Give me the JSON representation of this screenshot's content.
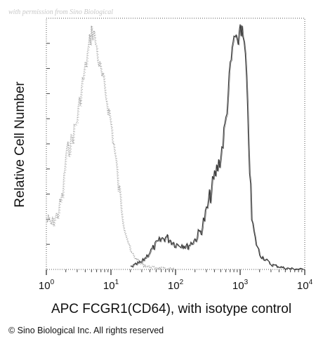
{
  "watermark": "with permission from Sino Biological",
  "copyright": "© Sino Biological Inc. All rights reserved",
  "chart_data": {
    "type": "line",
    "xlabel": "APC FCGR1(CD64), with isotype control",
    "ylabel": "Relative Cell Number",
    "x_scale": "log",
    "xlim": [
      1,
      10000
    ],
    "ylim": [
      0,
      100
    ],
    "x_ticks": [
      {
        "base": "10",
        "exp": "0"
      },
      {
        "base": "10",
        "exp": "1"
      },
      {
        "base": "10",
        "exp": "2"
      },
      {
        "base": "10",
        "exp": "3"
      },
      {
        "base": "10",
        "exp": "4"
      }
    ],
    "grid": false,
    "legend": "none",
    "series": [
      {
        "style": "dotted",
        "color": "#9a9a9a",
        "x": [
          1.0,
          1.2,
          1.5,
          1.8,
          2.0,
          2.5,
          3.0,
          3.5,
          4.0,
          4.5,
          5.0,
          5.5,
          6.0,
          6.5,
          7.0,
          8.0,
          9.0,
          10.0,
          11.0,
          12.0,
          13.0,
          14.0,
          16.0,
          18.0,
          20.0,
          25.0,
          30.0,
          40.0,
          60.0,
          100.0
        ],
        "y": [
          20,
          18,
          22,
          30,
          45,
          52,
          60,
          72,
          80,
          88,
          95,
          93,
          88,
          82,
          78,
          72,
          65,
          58,
          50,
          42,
          33,
          28,
          18,
          12,
          7,
          4,
          2,
          1,
          0.5,
          0
        ]
      },
      {
        "style": "solid",
        "color": "#333333",
        "x": [
          20,
          30,
          40,
          50,
          60,
          70,
          80,
          100,
          130,
          150,
          200,
          250,
          300,
          400,
          500,
          600,
          700,
          800,
          900,
          1000,
          1100,
          1200,
          1300,
          1500,
          1700,
          2000,
          3000,
          5000,
          10000
        ],
        "y": [
          1,
          3,
          7,
          10,
          12,
          13,
          12,
          10,
          10,
          9,
          12,
          16,
          23,
          37,
          45,
          60,
          80,
          93,
          88,
          98,
          92,
          85,
          62,
          20,
          12,
          6,
          2,
          0.5,
          0
        ]
      }
    ]
  }
}
